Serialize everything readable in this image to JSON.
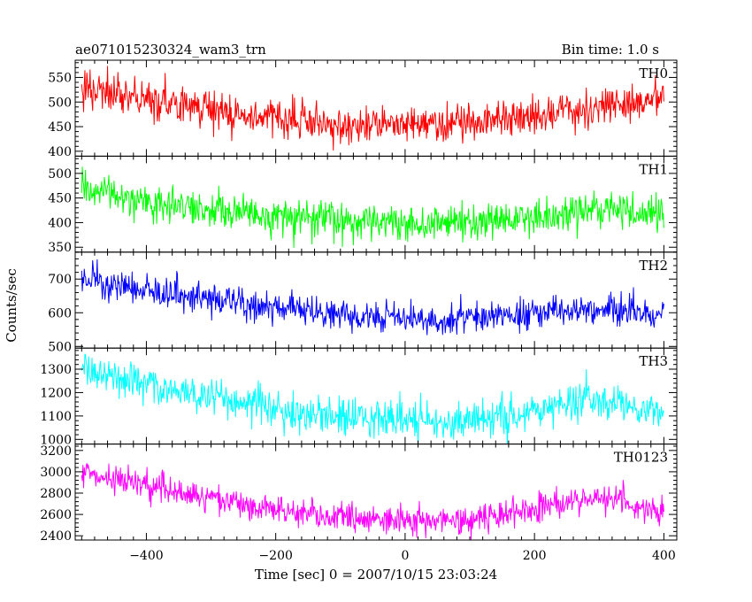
{
  "chart_data": {
    "type": "line",
    "title_left": "ae071015230324_wam3_trn",
    "title_right": "Bin time: 1.0 s",
    "xlabel": "Time [sec] 0 = 2007/10/15 23:03:24",
    "ylabel": "Counts/sec",
    "x_range": [
      -500,
      400
    ],
    "xlim": [
      -510,
      420
    ],
    "x_ticks": [
      -400,
      -200,
      0,
      200,
      400
    ],
    "bin_time_s": 1.0,
    "grid": false,
    "panels": [
      {
        "name": "TH0",
        "color": "#ff0000",
        "ylim": [
          390,
          585
        ],
        "y_ticks": [
          400,
          450,
          500,
          550
        ],
        "trend": [
          [
            -500,
            525
          ],
          [
            -400,
            505
          ],
          [
            -300,
            485
          ],
          [
            -200,
            465
          ],
          [
            -100,
            455
          ],
          [
            0,
            455
          ],
          [
            100,
            460
          ],
          [
            200,
            470
          ],
          [
            300,
            495
          ],
          [
            400,
            510
          ]
        ],
        "noise_sd": 20
      },
      {
        "name": "TH1",
        "color": "#00ff00",
        "ylim": [
          340,
          535
        ],
        "y_ticks": [
          350,
          400,
          450,
          500
        ],
        "trend": [
          [
            -500,
            475
          ],
          [
            -400,
            440
          ],
          [
            -300,
            425
          ],
          [
            -200,
            410
          ],
          [
            -100,
            405
          ],
          [
            0,
            400
          ],
          [
            100,
            400
          ],
          [
            200,
            410
          ],
          [
            300,
            425
          ],
          [
            400,
            420
          ]
        ],
        "noise_sd": 18
      },
      {
        "name": "TH2",
        "color": "#0000ff",
        "ylim": [
          495,
          780
        ],
        "y_ticks": [
          500,
          600,
          700
        ],
        "trend": [
          [
            -500,
            700
          ],
          [
            -400,
            670
          ],
          [
            -300,
            640
          ],
          [
            -200,
            615
          ],
          [
            -100,
            595
          ],
          [
            0,
            585
          ],
          [
            100,
            585
          ],
          [
            200,
            595
          ],
          [
            300,
            610
          ],
          [
            400,
            595
          ]
        ],
        "noise_sd": 22
      },
      {
        "name": "TH3",
        "color": "#00ffff",
        "ylim": [
          980,
          1390
        ],
        "y_ticks": [
          1000,
          1100,
          1200,
          1300
        ],
        "trend": [
          [
            -500,
            1300
          ],
          [
            -400,
            1230
          ],
          [
            -300,
            1180
          ],
          [
            -200,
            1130
          ],
          [
            -100,
            1100
          ],
          [
            0,
            1080
          ],
          [
            100,
            1080
          ],
          [
            200,
            1120
          ],
          [
            300,
            1180
          ],
          [
            400,
            1110
          ]
        ],
        "noise_sd": 40
      },
      {
        "name": "TH0123",
        "color": "#ff00ff",
        "ylim": [
          2360,
          3260
        ],
        "y_ticks": [
          2400,
          2600,
          2800,
          3000,
          3200
        ],
        "trend": [
          [
            -500,
            3000
          ],
          [
            -400,
            2870
          ],
          [
            -300,
            2760
          ],
          [
            -200,
            2640
          ],
          [
            -100,
            2570
          ],
          [
            0,
            2540
          ],
          [
            100,
            2540
          ],
          [
            200,
            2650
          ],
          [
            300,
            2760
          ],
          [
            400,
            2610
          ]
        ],
        "noise_sd": 70
      }
    ]
  }
}
